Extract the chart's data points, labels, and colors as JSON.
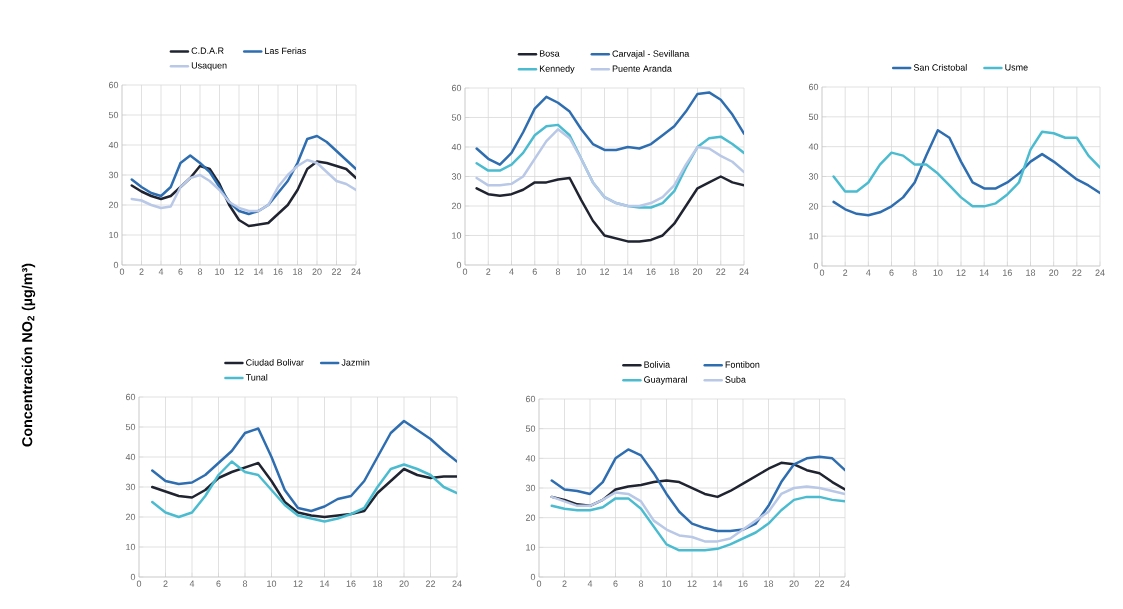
{
  "chart_data": [
    {
      "type": "line",
      "ylabel": "Concentración NO$_{2}$ (µg/m³)",
      "x": [
        1,
        2,
        3,
        4,
        5,
        6,
        7,
        8,
        9,
        10,
        11,
        12,
        13,
        14,
        15,
        16,
        17,
        18,
        19,
        20,
        21,
        22,
        23,
        24
      ],
      "xlim": [
        0,
        24
      ],
      "ylim": [
        0,
        60
      ],
      "xticks": [
        0,
        2,
        4,
        6,
        8,
        10,
        12,
        14,
        16,
        18,
        20,
        22,
        24
      ],
      "yticks": [
        0,
        10,
        20,
        30,
        40,
        50,
        60
      ],
      "grid": true,
      "legend": "top",
      "marker": "none",
      "series": [
        {
          "name": "C.D.A.R",
          "color": "#1f2430",
          "values": [
            26.5,
            24.5,
            23,
            22,
            23,
            26,
            29,
            33,
            32,
            27,
            20,
            15,
            13,
            13.5,
            14,
            17,
            20,
            25,
            32,
            34.5,
            34,
            33,
            32,
            29
          ]
        },
        {
          "name": "Las Ferias",
          "color": "#2e6eb0",
          "values": [
            28.5,
            26,
            24,
            23,
            26,
            34,
            36.5,
            34,
            31,
            26,
            21,
            18,
            17,
            18,
            20,
            24,
            28,
            34,
            42,
            43,
            41,
            38,
            35,
            32
          ]
        },
        {
          "name": "Usaquen",
          "color": "#b8c8e6",
          "values": [
            22,
            21.5,
            20,
            19,
            19.5,
            26,
            29,
            30,
            28,
            25,
            21,
            19,
            18,
            18,
            20,
            26,
            30,
            33,
            35,
            34,
            31,
            28,
            27,
            25
          ]
        }
      ]
    },
    {
      "type": "line",
      "x": [
        1,
        2,
        3,
        4,
        5,
        6,
        7,
        8,
        9,
        10,
        11,
        12,
        13,
        14,
        15,
        16,
        17,
        18,
        19,
        20,
        21,
        22,
        23,
        24
      ],
      "xlim": [
        0,
        24
      ],
      "ylim": [
        0,
        60
      ],
      "xticks": [
        0,
        2,
        4,
        6,
        8,
        10,
        12,
        14,
        16,
        18,
        20,
        22,
        24
      ],
      "yticks": [
        0,
        10,
        20,
        30,
        40,
        50,
        60
      ],
      "grid": true,
      "legend": "top",
      "marker": "none",
      "series": [
        {
          "name": "Bosa",
          "color": "#1f2430",
          "values": [
            26,
            24,
            23.5,
            24,
            25.5,
            28,
            28,
            29,
            29.5,
            22,
            15,
            10,
            9,
            8,
            8,
            8.5,
            10,
            14,
            20,
            26,
            28,
            30,
            28,
            27
          ]
        },
        {
          "name": "Carvajal - Sevillana",
          "color": "#2e6eb0",
          "values": [
            39.5,
            36,
            34,
            38,
            45,
            53,
            57,
            55,
            52,
            46,
            41,
            39,
            39,
            40,
            39.5,
            41,
            44,
            47,
            52,
            58,
            58.5,
            56,
            51,
            44.5
          ]
        },
        {
          "name": "Kennedy",
          "color": "#4bbcd0",
          "values": [
            34.5,
            32,
            32,
            34,
            38,
            44,
            47,
            47.5,
            44,
            36,
            28,
            23,
            21,
            20,
            19.5,
            19.5,
            21,
            25,
            33,
            40,
            43,
            43.5,
            41,
            38
          ]
        },
        {
          "name": "Puente Aranda",
          "color": "#b8c8e6",
          "values": [
            29.5,
            27,
            27,
            27.5,
            30,
            36,
            42,
            46,
            43,
            36,
            28,
            23,
            21,
            20,
            20,
            21,
            23,
            27,
            34,
            40,
            39.5,
            37,
            35,
            31.5
          ]
        }
      ]
    },
    {
      "type": "line",
      "x": [
        1,
        2,
        3,
        4,
        5,
        6,
        7,
        8,
        9,
        10,
        11,
        12,
        13,
        14,
        15,
        16,
        17,
        18,
        19,
        20,
        21,
        22,
        23,
        24
      ],
      "xlim": [
        0,
        24
      ],
      "ylim": [
        0,
        60
      ],
      "xticks": [
        0,
        2,
        4,
        6,
        8,
        10,
        12,
        14,
        16,
        18,
        20,
        22,
        24
      ],
      "yticks": [
        0,
        10,
        20,
        30,
        40,
        50,
        60
      ],
      "grid": true,
      "legend": "top",
      "marker": "none",
      "series": [
        {
          "name": "San Cristobal",
          "color": "#2e6eb0",
          "values": [
            21.5,
            19,
            17.5,
            17,
            18,
            20,
            23,
            28,
            37,
            45.5,
            43,
            35,
            28,
            26,
            26,
            28,
            31,
            35,
            37.5,
            35,
            32,
            29,
            27,
            24.5
          ]
        },
        {
          "name": "Usme",
          "color": "#4bbcd0",
          "values": [
            30,
            25,
            25,
            28,
            34,
            38,
            37,
            34,
            34,
            31,
            27,
            23,
            20,
            20,
            21,
            24,
            28,
            39,
            45,
            44.5,
            43,
            43,
            37,
            33
          ]
        }
      ]
    },
    {
      "type": "line",
      "x": [
        1,
        2,
        3,
        4,
        5,
        6,
        7,
        8,
        9,
        10,
        11,
        12,
        13,
        14,
        15,
        16,
        17,
        18,
        19,
        20,
        21,
        22,
        23,
        24
      ],
      "xlim": [
        0,
        24
      ],
      "ylim": [
        0,
        60
      ],
      "xticks": [
        0,
        2,
        4,
        6,
        8,
        10,
        12,
        14,
        16,
        18,
        20,
        22,
        24
      ],
      "yticks": [
        0,
        10,
        20,
        30,
        40,
        50,
        60
      ],
      "grid": true,
      "legend": "top",
      "marker": "none",
      "series": [
        {
          "name": "Ciudad Bolivar",
          "color": "#1f2430",
          "values": [
            30,
            28.5,
            27,
            26.5,
            29,
            33,
            35,
            36.5,
            38,
            32,
            25,
            21.5,
            20.5,
            20,
            20.5,
            21,
            22,
            28,
            32,
            36,
            34,
            33,
            33.5,
            33.5
          ]
        },
        {
          "name": "Jazmin",
          "color": "#2e6eb0",
          "values": [
            35.5,
            32,
            31,
            31.5,
            34,
            38,
            42,
            48,
            49.5,
            40,
            29,
            23,
            22,
            23.5,
            26,
            27,
            32,
            40,
            48,
            52,
            49,
            46,
            42,
            38.5
          ]
        },
        {
          "name": "Tunal",
          "color": "#4bbcd0",
          "values": [
            25,
            21.5,
            20,
            21.5,
            27,
            34,
            38.5,
            35,
            34,
            29,
            24,
            20.5,
            19.5,
            18.5,
            19.5,
            21,
            23,
            30,
            36,
            37.5,
            36,
            34,
            30,
            28
          ]
        }
      ]
    },
    {
      "type": "line",
      "x": [
        1,
        2,
        3,
        4,
        5,
        6,
        7,
        8,
        9,
        10,
        11,
        12,
        13,
        14,
        15,
        16,
        17,
        18,
        19,
        20,
        21,
        22,
        23,
        24
      ],
      "xlim": [
        0,
        24
      ],
      "ylim": [
        0,
        60
      ],
      "xticks": [
        0,
        2,
        4,
        6,
        8,
        10,
        12,
        14,
        16,
        18,
        20,
        22,
        24
      ],
      "yticks": [
        0,
        10,
        20,
        30,
        40,
        50,
        60
      ],
      "grid": true,
      "legend": "top",
      "marker": "none",
      "series": [
        {
          "name": "Bolivia",
          "color": "#1f2430",
          "values": [
            27,
            26,
            24.5,
            24,
            26,
            29.5,
            30.5,
            31,
            32,
            32.5,
            32,
            30,
            28,
            27,
            29,
            31.5,
            34,
            36.5,
            38.5,
            38,
            36,
            35,
            32,
            29.5
          ]
        },
        {
          "name": "Fontibon",
          "color": "#2e6eb0",
          "values": [
            32.5,
            29.5,
            29,
            28,
            32,
            40,
            43,
            41,
            35,
            28,
            22,
            18,
            16.5,
            15.5,
            15.5,
            16,
            18,
            24,
            32,
            38,
            40,
            40.5,
            40,
            36
          ]
        },
        {
          "name": "Guaymaral",
          "color": "#4bbcd0",
          "values": [
            24,
            23,
            22.5,
            22.5,
            23.5,
            26.5,
            26.5,
            23,
            17,
            11,
            9,
            9,
            9,
            9.5,
            11,
            13,
            15,
            18,
            22.5,
            26,
            27,
            27,
            26,
            25.5
          ]
        },
        {
          "name": "Suba",
          "color": "#b8c8e6",
          "values": [
            27,
            25.5,
            24,
            24,
            26,
            28.5,
            28,
            25.5,
            19,
            16,
            14,
            13.5,
            12,
            12,
            13,
            16,
            19,
            22,
            28,
            30,
            30.5,
            30,
            29,
            28
          ]
        }
      ]
    }
  ]
}
